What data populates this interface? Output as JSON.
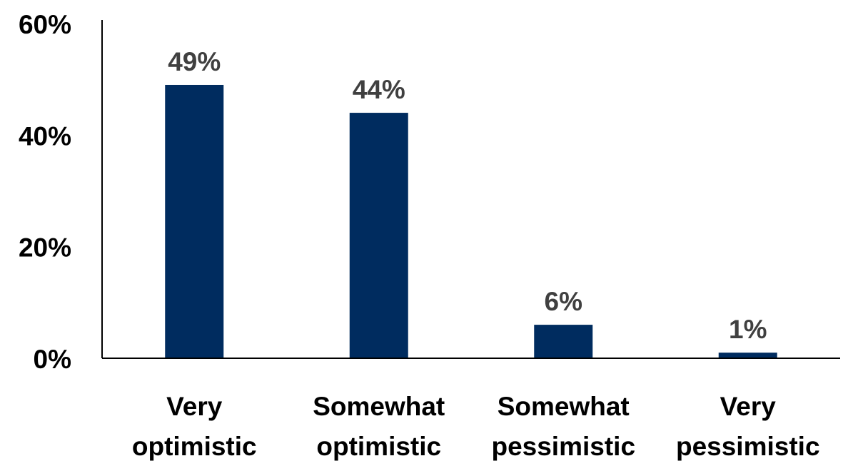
{
  "chart_data": {
    "type": "bar",
    "categories": [
      [
        "Very",
        "optimistic"
      ],
      [
        "Somewhat",
        "optimistic"
      ],
      [
        "Somewhat",
        "pessimistic"
      ],
      [
        "Very",
        "pessimistic"
      ]
    ],
    "values": [
      49,
      44,
      6,
      1
    ],
    "data_labels": [
      "49%",
      "44%",
      "6%",
      "1%"
    ],
    "yticks": [
      0,
      20,
      40,
      60
    ],
    "ytick_labels": [
      "0%",
      "20%",
      "40%",
      "60%"
    ],
    "ylim": [
      0,
      60
    ],
    "title": "",
    "xlabel": "",
    "ylabel": "",
    "grid": false,
    "legend": "none",
    "bar_color": "#002c5f",
    "axis_color": "#000000",
    "label_color": "#404040"
  }
}
